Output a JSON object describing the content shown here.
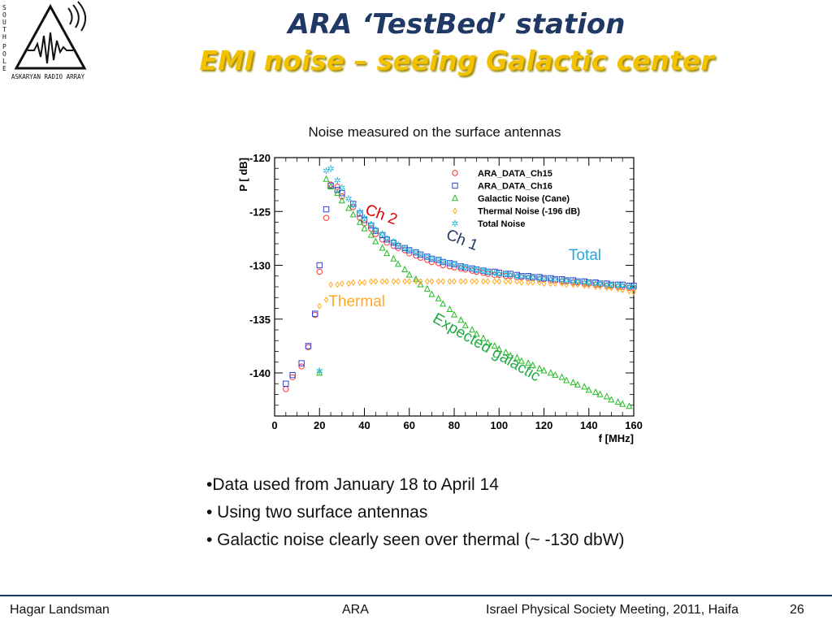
{
  "logo": {
    "side_text": "SOUTH POLE",
    "bottom_text": "ASKARYAN RADIO ARRAY"
  },
  "header": {
    "title": "ARA ‘TestBed’ station",
    "subtitle": "EMI noise – seeing Galactic center"
  },
  "chart_caption": "Noise measured on the surface antennas",
  "chart_data": {
    "type": "scatter",
    "xlabel": "f [MHz]",
    "ylabel": "P [ dB]",
    "xlim": [
      0,
      160
    ],
    "ylim": [
      -144,
      -120
    ],
    "xticks": [
      0,
      20,
      40,
      60,
      80,
      100,
      120,
      140,
      160
    ],
    "yticks": [
      -120,
      -125,
      -130,
      -135,
      -140
    ],
    "legend_position": "top-right",
    "series": [
      {
        "name": "ARA_DATA_Ch15",
        "color": "#ff3333",
        "marker": "circle",
        "x": [
          5,
          8,
          12,
          15,
          18,
          20,
          23,
          25,
          28,
          30,
          35,
          38,
          40,
          43,
          45,
          48,
          50,
          53,
          55,
          58,
          60,
          63,
          65,
          68,
          70,
          73,
          75,
          78,
          80,
          83,
          85,
          88,
          90,
          93,
          95,
          98,
          100,
          103,
          105,
          108,
          110,
          113,
          115,
          118,
          120,
          123,
          125,
          128,
          130,
          133,
          135,
          138,
          140,
          143,
          145,
          148,
          150,
          153,
          155,
          158,
          160
        ],
        "y": [
          -141.5,
          -140.4,
          -139.4,
          -137.6,
          -134.6,
          -130.6,
          -125.6,
          -122.5,
          -122.7,
          -123.6,
          -124.6,
          -125.6,
          -126.1,
          -126.6,
          -127.1,
          -127.6,
          -127.9,
          -128.2,
          -128.4,
          -128.6,
          -128.9,
          -129.1,
          -129.3,
          -129.5,
          -129.7,
          -129.8,
          -130,
          -130.1,
          -130.2,
          -130.3,
          -130.4,
          -130.5,
          -130.6,
          -130.7,
          -130.8,
          -130.9,
          -130.9,
          -131,
          -131,
          -131.1,
          -131.1,
          -131.2,
          -131.2,
          -131.3,
          -131.3,
          -131.4,
          -131.4,
          -131.5,
          -131.5,
          -131.6,
          -131.6,
          -131.7,
          -131.7,
          -131.8,
          -131.8,
          -131.9,
          -131.9,
          -132,
          -132,
          -132.1,
          -132.1
        ]
      },
      {
        "name": "ARA_DATA_Ch16",
        "color": "#3344cc",
        "marker": "square",
        "x": [
          5,
          8,
          12,
          15,
          18,
          20,
          23,
          25,
          28,
          30,
          35,
          38,
          40,
          43,
          45,
          48,
          50,
          53,
          55,
          58,
          60,
          63,
          65,
          68,
          70,
          73,
          75,
          78,
          80,
          83,
          85,
          88,
          90,
          93,
          95,
          98,
          100,
          103,
          105,
          108,
          110,
          113,
          115,
          118,
          120,
          123,
          125,
          128,
          130,
          133,
          135,
          138,
          140,
          143,
          145,
          148,
          150,
          153,
          155,
          158,
          160
        ],
        "y": [
          -141,
          -140.2,
          -139.1,
          -137.5,
          -134.5,
          -130,
          -124.8,
          -122.6,
          -123,
          -123.3,
          -124.3,
          -125.2,
          -125.8,
          -126.3,
          -126.8,
          -127.2,
          -127.6,
          -127.9,
          -128.2,
          -128.4,
          -128.6,
          -128.8,
          -129,
          -129.2,
          -129.4,
          -129.5,
          -129.7,
          -129.8,
          -129.9,
          -130.1,
          -130.2,
          -130.3,
          -130.4,
          -130.5,
          -130.6,
          -130.6,
          -130.7,
          -130.8,
          -130.8,
          -130.9,
          -131,
          -131,
          -131.1,
          -131.1,
          -131.2,
          -131.2,
          -131.3,
          -131.3,
          -131.4,
          -131.4,
          -131.5,
          -131.5,
          -131.6,
          -131.6,
          -131.7,
          -131.7,
          -131.8,
          -131.8,
          -131.8,
          -131.9,
          -131.9
        ]
      },
      {
        "name": "Galactic Noise (Cane)",
        "color": "#22bb22",
        "marker": "triangle",
        "x": [
          20,
          23,
          25,
          28,
          30,
          33,
          35,
          38,
          40,
          43,
          45,
          48,
          50,
          53,
          55,
          58,
          60,
          63,
          65,
          68,
          70,
          73,
          75,
          78,
          80,
          83,
          85,
          88,
          90,
          93,
          95,
          98,
          100,
          103,
          105,
          108,
          110,
          113,
          115,
          118,
          120,
          123,
          125,
          128,
          130,
          133,
          135,
          138,
          140,
          143,
          145,
          148,
          150,
          153,
          155,
          158
        ],
        "y": [
          -140,
          -122,
          -122.7,
          -123.3,
          -124,
          -124.7,
          -125.3,
          -126,
          -126.6,
          -127.2,
          -127.8,
          -128.4,
          -128.9,
          -129.4,
          -129.9,
          -130.4,
          -130.9,
          -131.3,
          -131.8,
          -132.2,
          -132.7,
          -133.1,
          -133.6,
          -134.1,
          -134.6,
          -135.1,
          -135.6,
          -136,
          -136.4,
          -136.8,
          -137.2,
          -137.5,
          -137.8,
          -138.1,
          -138.4,
          -138.6,
          -138.9,
          -139.1,
          -139.3,
          -139.6,
          -139.8,
          -140,
          -140.2,
          -140.4,
          -140.7,
          -140.9,
          -141.1,
          -141.3,
          -141.6,
          -141.8,
          -142,
          -142.2,
          -142.5,
          -142.7,
          -142.9,
          -143.1
        ]
      },
      {
        "name": "Thermal Noise (-196 dB)",
        "color": "#ffaa22",
        "marker": "diamond",
        "x": [
          20,
          23,
          25,
          28,
          30,
          33,
          35,
          38,
          40,
          43,
          45,
          48,
          50,
          53,
          55,
          58,
          60,
          63,
          65,
          68,
          70,
          73,
          75,
          78,
          80,
          83,
          85,
          88,
          90,
          93,
          95,
          98,
          100,
          103,
          105,
          108,
          110,
          113,
          115,
          118,
          120,
          123,
          125,
          128,
          130,
          133,
          135,
          138,
          140,
          143,
          145,
          148,
          150,
          153,
          155,
          158,
          160
        ],
        "y": [
          -133.8,
          -133.2,
          -131.8,
          -131.8,
          -131.7,
          -131.7,
          -131.6,
          -131.6,
          -131.6,
          -131.5,
          -131.5,
          -131.5,
          -131.5,
          -131.5,
          -131.5,
          -131.5,
          -131.5,
          -131.5,
          -131.5,
          -131.5,
          -131.5,
          -131.5,
          -131.5,
          -131.5,
          -131.5,
          -131.5,
          -131.5,
          -131.5,
          -131.5,
          -131.5,
          -131.5,
          -131.5,
          -131.5,
          -131.5,
          -131.5,
          -131.5,
          -131.6,
          -131.6,
          -131.6,
          -131.6,
          -131.7,
          -131.7,
          -131.7,
          -131.7,
          -131.8,
          -131.8,
          -131.8,
          -131.9,
          -131.9,
          -132,
          -132,
          -132.1,
          -132.1,
          -132.2,
          -132.3,
          -132.4,
          -132.5
        ]
      },
      {
        "name": "Total Noise",
        "color": "#22bbdd",
        "marker": "star",
        "x": [
          20,
          23,
          25,
          28,
          30,
          33,
          35,
          38,
          40,
          43,
          45,
          48,
          50,
          53,
          55,
          58,
          60,
          63,
          65,
          68,
          70,
          73,
          75,
          78,
          80,
          83,
          85,
          88,
          90,
          93,
          95,
          98,
          100,
          103,
          105,
          108,
          110,
          113,
          115,
          118,
          120,
          123,
          125,
          128,
          130,
          133,
          135,
          138,
          140,
          143,
          145,
          148,
          150,
          153,
          155,
          158,
          160
        ],
        "y": [
          -139.8,
          -121.2,
          -121,
          -122.1,
          -122.8,
          -123.8,
          -124.4,
          -125,
          -125.6,
          -126.2,
          -126.7,
          -127.1,
          -127.5,
          -127.8,
          -128.1,
          -128.4,
          -128.6,
          -128.8,
          -129,
          -129.2,
          -129.4,
          -129.5,
          -129.7,
          -129.8,
          -129.9,
          -130.1,
          -130.2,
          -130.3,
          -130.4,
          -130.5,
          -130.6,
          -130.7,
          -130.8,
          -130.8,
          -130.9,
          -131,
          -131,
          -131.1,
          -131.1,
          -131.2,
          -131.2,
          -131.3,
          -131.3,
          -131.4,
          -131.4,
          -131.5,
          -131.5,
          -131.6,
          -131.6,
          -131.7,
          -131.7,
          -131.8,
          -131.8,
          -131.9,
          -131.9,
          -132,
          -132
        ]
      }
    ],
    "annotations": [
      {
        "text": "Ch 2",
        "color": "#dd0000",
        "x": 40,
        "y": -125.2,
        "rotate": 20
      },
      {
        "text": "Ch 1",
        "color": "#1f3864",
        "x": 76,
        "y": -127.5,
        "rotate": 22
      },
      {
        "text": "Total",
        "color": "#22aadd",
        "x": 131,
        "y": -129.5,
        "rotate": 0
      },
      {
        "text": "Thermal",
        "color": "#ffaa22",
        "x": 24,
        "y": -133.8,
        "rotate": 0
      },
      {
        "text": "Expected galactic",
        "color": "#22aa44",
        "x": 70,
        "y": -135.2,
        "rotate": 30
      }
    ]
  },
  "bullets": [
    "•Data used from January 18 to April 14",
    "• Using two surface antennas",
    "• Galactic noise clearly seen over thermal (~ -130 dbW)"
  ],
  "footer": {
    "author": "Hagar Landsman",
    "project": "ARA",
    "meeting": "Israel Physical Society Meeting, 2011, Haifa",
    "page": "26"
  }
}
